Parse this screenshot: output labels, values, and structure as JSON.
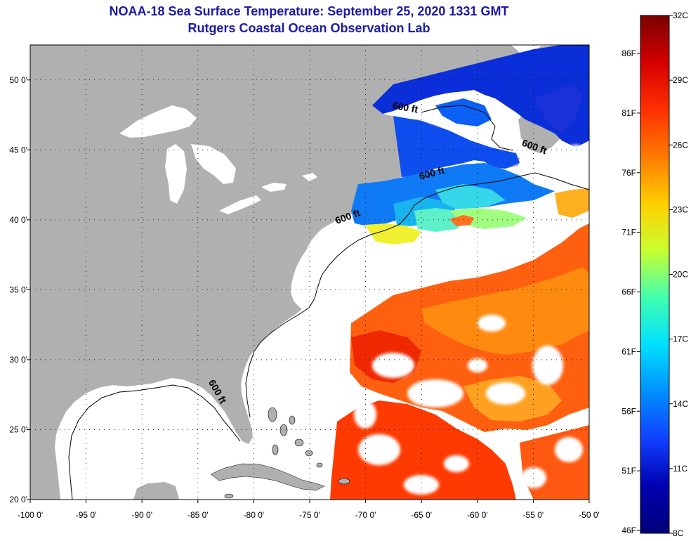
{
  "title": "NOAA-18 Sea Surface Temperature:  September 25, 2020 1331 GMT",
  "subtitle": "Rutgers Coastal Ocean Observation Lab",
  "map": {
    "lon_range": [
      -100,
      -50
    ],
    "lat_range": [
      20,
      52.5
    ],
    "lon_ticks": [
      {
        "value": -100,
        "label": "-100 0'"
      },
      {
        "value": -95,
        "label": "-95 0'"
      },
      {
        "value": -90,
        "label": "-90 0'"
      },
      {
        "value": -85,
        "label": "-85 0'"
      },
      {
        "value": -80,
        "label": "-80 0'"
      },
      {
        "value": -75,
        "label": "-75 0'"
      },
      {
        "value": -70,
        "label": "-70 0'"
      },
      {
        "value": -65,
        "label": "-65 0'"
      },
      {
        "value": -60,
        "label": "-60 0'"
      },
      {
        "value": -55,
        "label": "-55 0'"
      },
      {
        "value": -50,
        "label": "-50 0'"
      }
    ],
    "lat_ticks": [
      {
        "value": 20,
        "label": "20 0'"
      },
      {
        "value": 25,
        "label": "25 0'"
      },
      {
        "value": 30,
        "label": "30 0'"
      },
      {
        "value": 35,
        "label": "35 0'"
      },
      {
        "value": 40,
        "label": "40 0'"
      },
      {
        "value": 45,
        "label": "45 0'"
      },
      {
        "value": 50,
        "label": "50 0'"
      }
    ],
    "contour_labels": [
      {
        "text": "600 ft",
        "lon": -66.5,
        "lat": 47.8,
        "rot": 10
      },
      {
        "text": "600 ft",
        "lon": -55.0,
        "lat": 45.0,
        "rot": 20
      },
      {
        "text": "600 ft",
        "lon": -64.0,
        "lat": 43.1,
        "rot": -15
      },
      {
        "text": "600 ft",
        "lon": -71.5,
        "lat": 40.0,
        "rot": -20
      },
      {
        "text": "600 ft",
        "lon": -83.5,
        "lat": 27.6,
        "rot": 60
      }
    ],
    "colors": {
      "land": "#b0b0b0",
      "water_nodata": "#ffffff",
      "border": "#000000"
    }
  },
  "colorbar": {
    "celsius_labels": [
      "32C",
      "29C",
      "26C",
      "23C",
      "20C",
      "17C",
      "14C",
      "11C",
      "8C"
    ],
    "fahrenheit_labels": [
      "86F",
      "81F",
      "76F",
      "71F",
      "66F",
      "61F",
      "56F",
      "51F",
      "46F"
    ],
    "gradient_colors": [
      "#7a0000",
      "#d40000",
      "#ff3000",
      "#ff7a00",
      "#ffd000",
      "#c8ff30",
      "#40ffb0",
      "#00e0ff",
      "#0090ff",
      "#1040ff",
      "#0000b0",
      "#00007a"
    ]
  }
}
